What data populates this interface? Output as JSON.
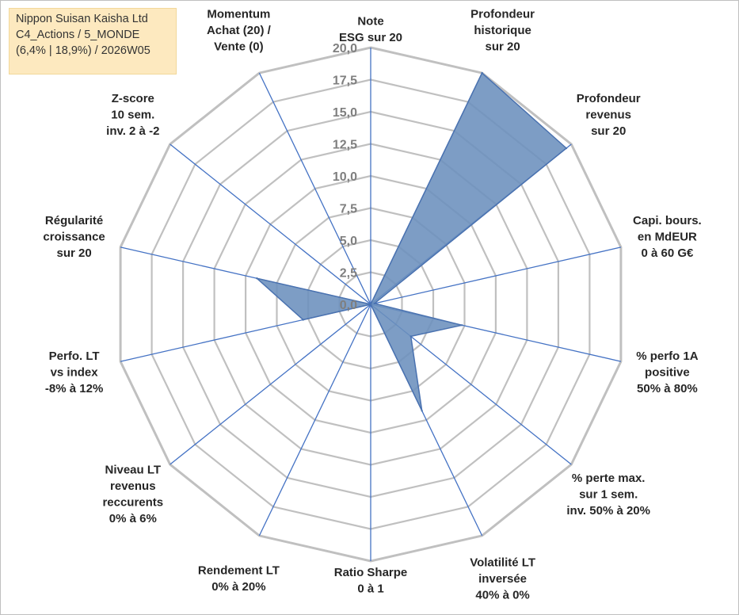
{
  "info": {
    "line1": "Nippon Suisan Kaisha Ltd",
    "line2": "C4_Actions / 5_MONDE",
    "line3": "(6,4% | 18,9%) / 2026W05"
  },
  "chart_data": {
    "type": "radar",
    "scale": {
      "min": 0,
      "max": 20,
      "step": 2.5
    },
    "tick_labels": [
      "0,0",
      "2,5",
      "5,0",
      "7,5",
      "10,0",
      "12,5",
      "15,0",
      "17,5",
      "20,0"
    ],
    "axes": [
      {
        "label": [
          "Note",
          "ESG sur 20"
        ],
        "value": 0
      },
      {
        "label": [
          "Profondeur",
          "historique",
          "sur 20"
        ],
        "value": 20
      },
      {
        "label": [
          "Profondeur",
          "revenus",
          "sur 20"
        ],
        "value": 19.5
      },
      {
        "label": [
          "Capi. bours.",
          "en MdEUR",
          "0 à 60 G€"
        ],
        "value": 0.3
      },
      {
        "label": [
          "% perfo 1A",
          "positive",
          "50% à 80%"
        ],
        "value": 7.3
      },
      {
        "label": [
          "% perte max.",
          "sur 1 sem.",
          "inv. 50% à 20%"
        ],
        "value": 4
      },
      {
        "label": [
          "Volatilité LT",
          "inversée",
          "40% à 0%"
        ],
        "value": 9.2
      },
      {
        "label": [
          "Ratio Sharpe",
          "0 à 1"
        ],
        "value": 0
      },
      {
        "label": [
          "Rendement LT",
          "0% à 20%"
        ],
        "value": 0
      },
      {
        "label": [
          "Niveau LT",
          "revenus",
          "reccurents",
          "0% à 6%"
        ],
        "value": 0
      },
      {
        "label": [
          "Perfo. LT",
          "vs index",
          "-8% à 12%"
        ],
        "value": 5.4
      },
      {
        "label": [
          "Régularité",
          "croissance",
          "sur 20"
        ],
        "value": 9.1
      },
      {
        "label": [
          "Z-score",
          "10 sem.",
          "inv. 2 à -2"
        ],
        "value": 0
      },
      {
        "label": [
          "Momentum",
          "Achat (20) /",
          "Vente (0)"
        ],
        "value": 0
      }
    ],
    "colors": {
      "fill": "#6b8fbd",
      "stroke": "#4a72b0",
      "spoke": "#4472c4",
      "grid": "#c0c0c0",
      "text": "#262626"
    }
  }
}
